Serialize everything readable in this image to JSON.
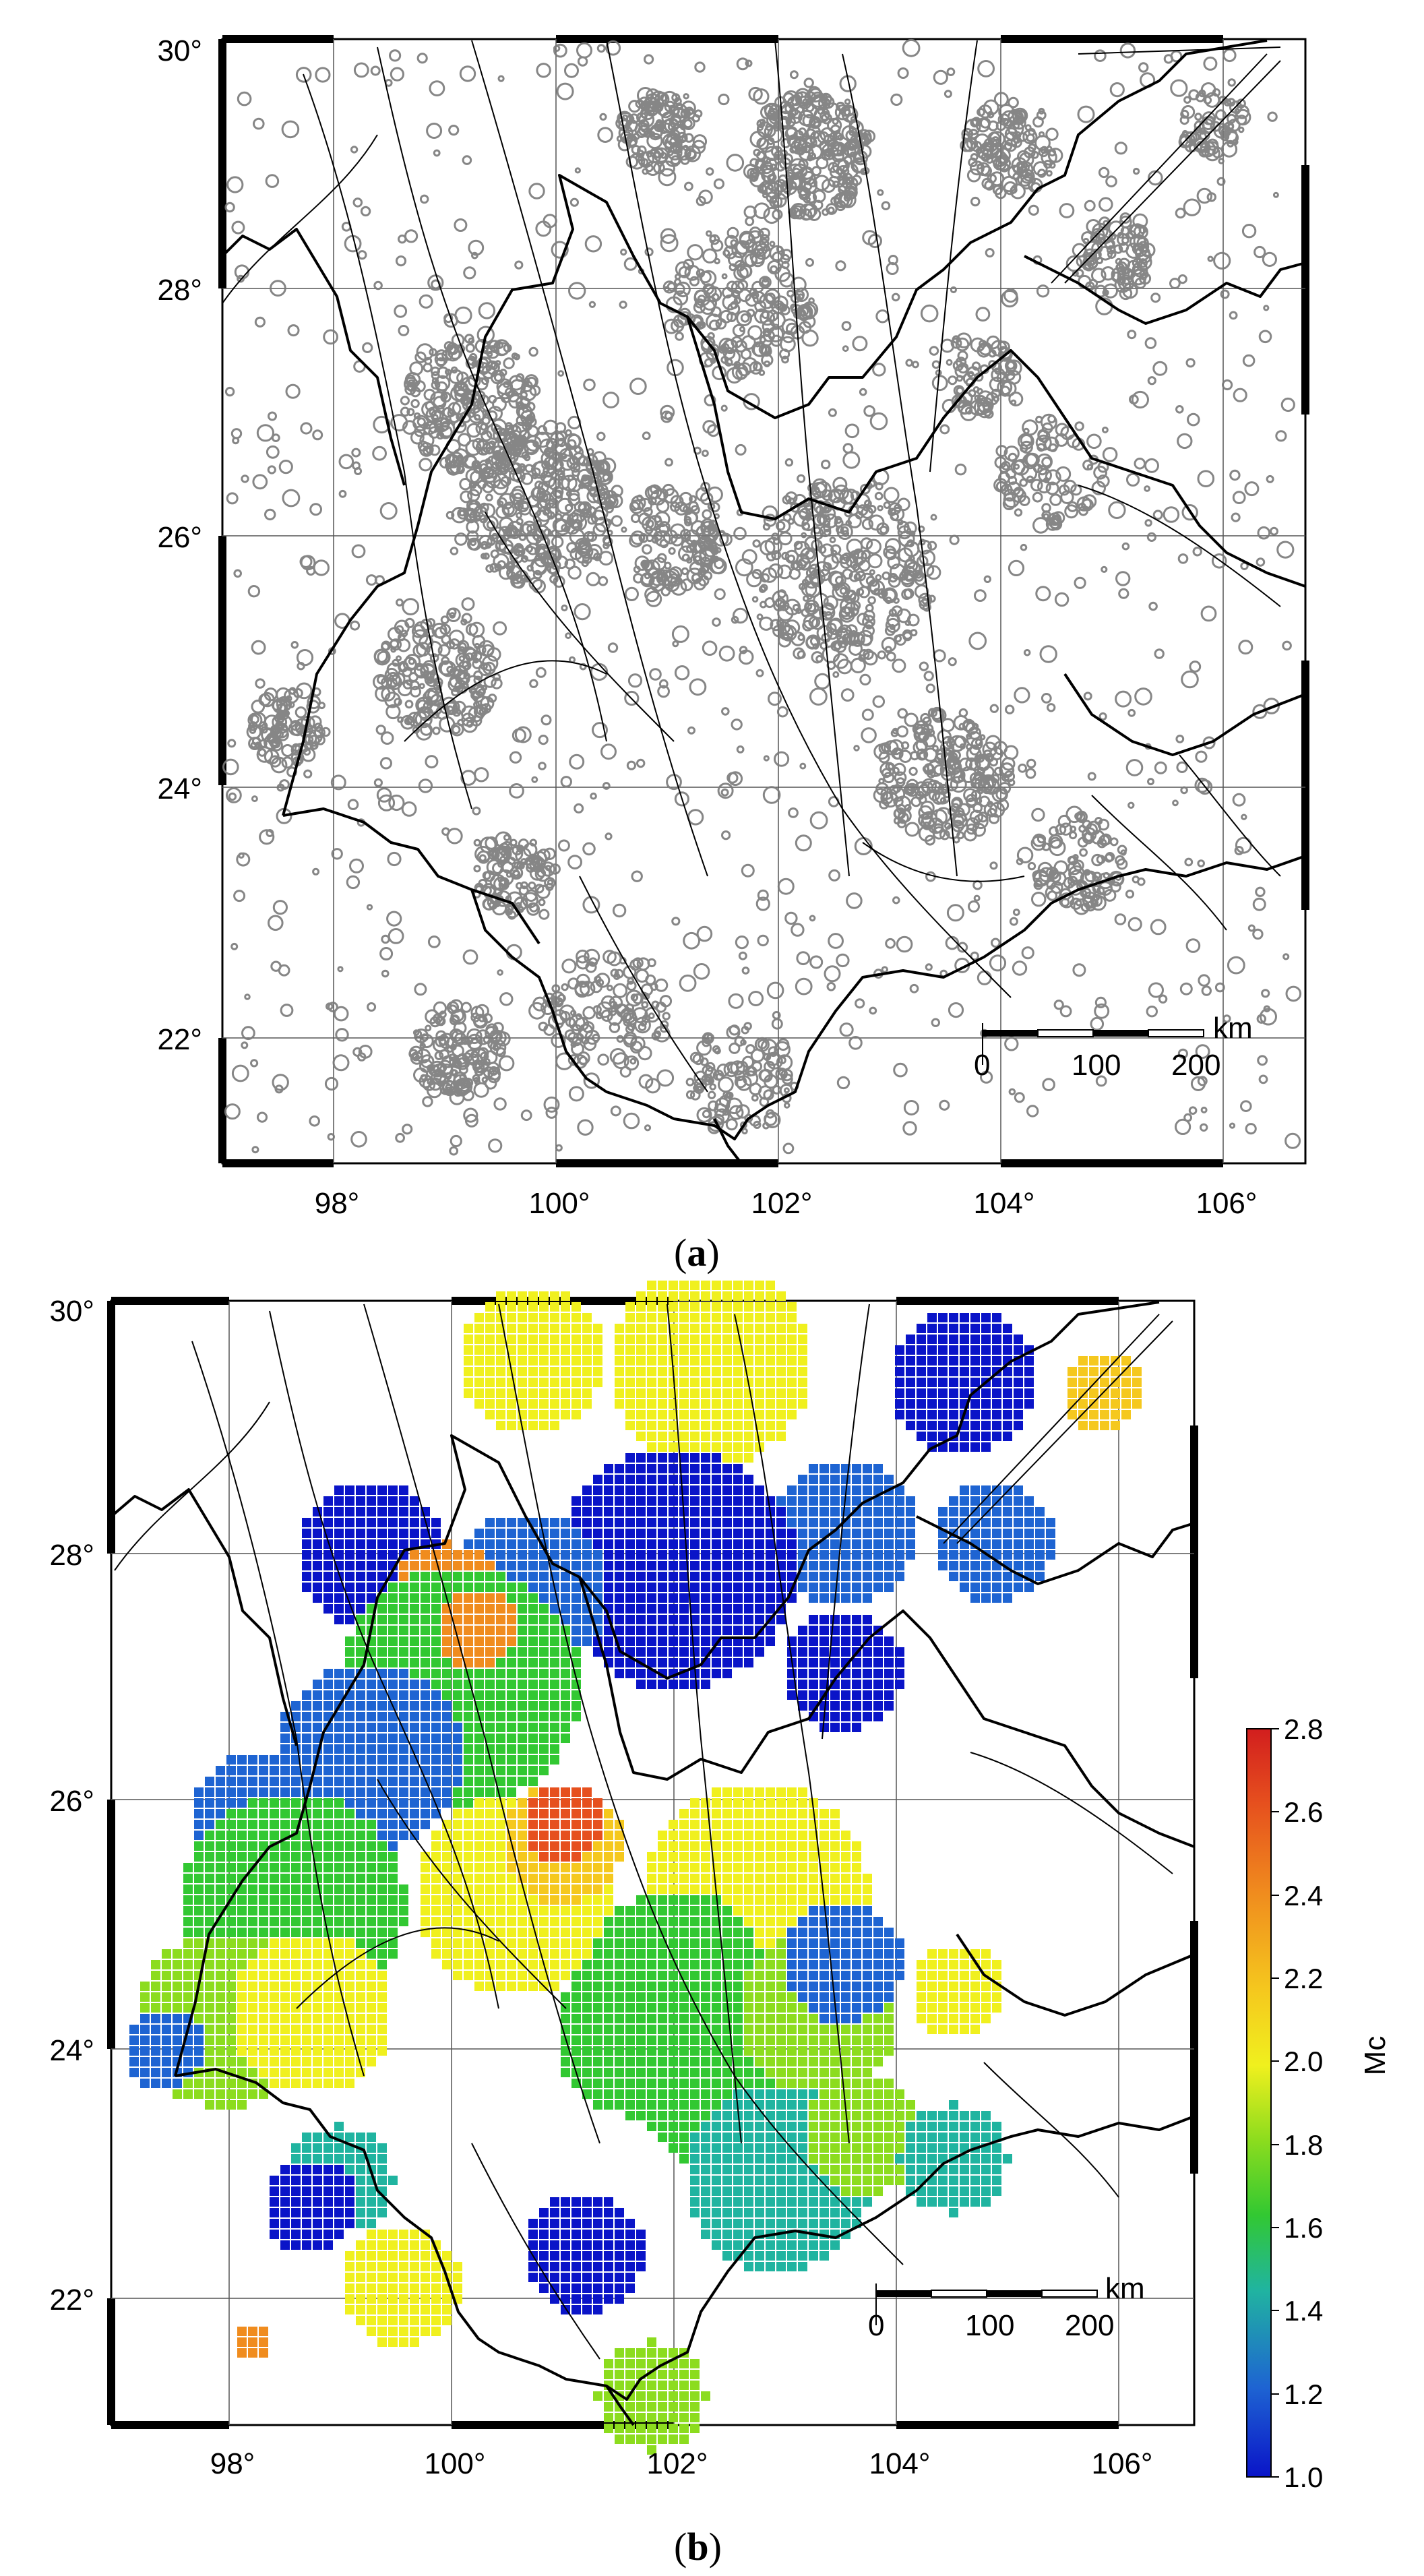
{
  "panel_a": {
    "label_open": "(",
    "label_letter": "a",
    "label_close": ")",
    "lat_ticks": [
      "30°",
      "28°",
      "26°",
      "24°",
      "22°"
    ],
    "lon_ticks": [
      "98°",
      "100°",
      "102°",
      "104°",
      "106°"
    ],
    "scale_bar": {
      "unit": "km",
      "labels": [
        "0",
        "100",
        "200"
      ]
    }
  },
  "panel_b": {
    "label_open": "(",
    "label_letter": "b",
    "label_close": ")",
    "lat_ticks": [
      "30°",
      "28°",
      "26°",
      "24°",
      "22°"
    ],
    "lon_ticks": [
      "98°",
      "100°",
      "102°",
      "104°",
      "106°"
    ],
    "scale_bar": {
      "unit": "km",
      "labels": [
        "0",
        "100",
        "200"
      ]
    },
    "colorbar": {
      "title": "Mc",
      "min": 1.0,
      "max": 2.8,
      "tick_labels": [
        "2.8",
        "2.6",
        "2.4",
        "2.2",
        "2.0",
        "1.8",
        "1.6",
        "1.4",
        "1.2",
        "1.0"
      ]
    }
  },
  "map_extent": {
    "lon_min": 97,
    "lon_max": 106.5,
    "lat_min": 21,
    "lat_max": 30
  },
  "colors": {
    "epicenter": "#7a7a7a",
    "fault": "#000000",
    "border": "#000000",
    "mc_scale": [
      "#0a14c8",
      "#1e64d2",
      "#20b4a0",
      "#32c832",
      "#8cdc1e",
      "#f0f01e",
      "#f5c81e",
      "#f08c1e",
      "#e6501e",
      "#d21e1e"
    ]
  }
}
